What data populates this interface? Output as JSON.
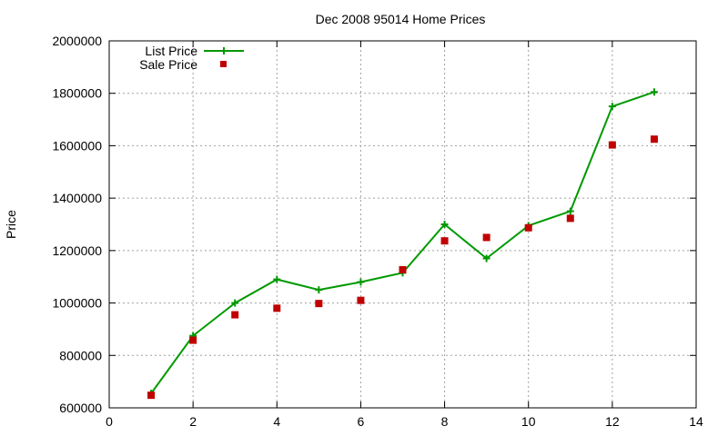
{
  "chart_data": {
    "type": "line",
    "title": "Dec 2008 95014 Home Prices",
    "xlabel": "",
    "ylabel": "Price",
    "xlim": [
      0,
      14
    ],
    "ylim": [
      600000,
      2000000
    ],
    "x_ticks": [
      0,
      2,
      4,
      6,
      8,
      10,
      12,
      14
    ],
    "y_ticks": [
      600000,
      800000,
      1000000,
      1200000,
      1400000,
      1600000,
      1800000,
      2000000
    ],
    "grid": true,
    "legend_position": "top-left",
    "series": [
      {
        "name": "List Price",
        "style": "line-with-plus-markers",
        "color": "#009900",
        "x": [
          1,
          2,
          3,
          4,
          5,
          6,
          7,
          8,
          9,
          10,
          11,
          12,
          13
        ],
        "y": [
          655000,
          875000,
          1000000,
          1090000,
          1050000,
          1080000,
          1115000,
          1300000,
          1170000,
          1295000,
          1350000,
          1750000,
          1805000
        ]
      },
      {
        "name": "Sale Price",
        "style": "square-markers",
        "color": "#c00000",
        "x": [
          1,
          2,
          3,
          4,
          5,
          6,
          7,
          8,
          9,
          10,
          11,
          12,
          13
        ],
        "y": [
          648000,
          858000,
          955000,
          980000,
          998000,
          1010000,
          1127000,
          1237000,
          1250000,
          1287000,
          1323000,
          1603000,
          1625000
        ]
      }
    ]
  }
}
